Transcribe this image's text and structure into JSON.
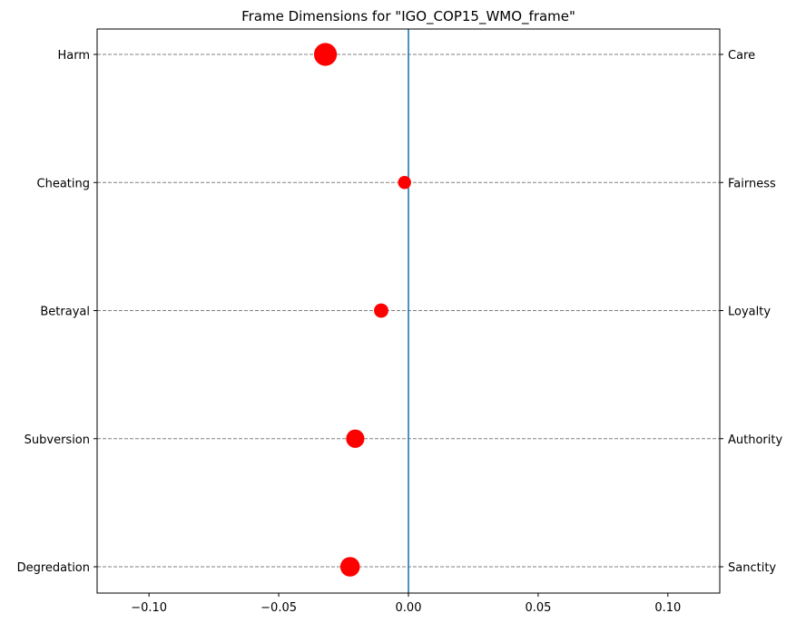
{
  "chart_data": {
    "type": "scatter",
    "title": "Frame Dimensions for \"IGO_COP15_WMO_frame\"",
    "xlabel": "",
    "ylabel": "",
    "xlim": [
      -0.12,
      0.12
    ],
    "x_ticks": [
      -0.1,
      -0.05,
      0.0,
      0.05,
      0.1
    ],
    "x_tick_labels": [
      "−0.10",
      "−0.05",
      "0.00",
      "0.05",
      "0.10"
    ],
    "left_labels": [
      "Harm",
      "Cheating",
      "Betrayal",
      "Subversion",
      "Degredation"
    ],
    "right_labels": [
      "Care",
      "Fairness",
      "Loyalty",
      "Authority",
      "Sanctity"
    ],
    "points": [
      {
        "x": -0.032,
        "size": 3.5
      },
      {
        "x": -0.0015,
        "size": 2.0
      },
      {
        "x": -0.0105,
        "size": 2.2
      },
      {
        "x": -0.0205,
        "size": 2.8
      },
      {
        "x": -0.0225,
        "size": 3.0
      }
    ],
    "reference_line_x": 0.0,
    "point_color": "#ff0000",
    "reference_line_color": "#1f77b4",
    "gridline_color": "#808080",
    "grid": "horizontal-dashed"
  }
}
